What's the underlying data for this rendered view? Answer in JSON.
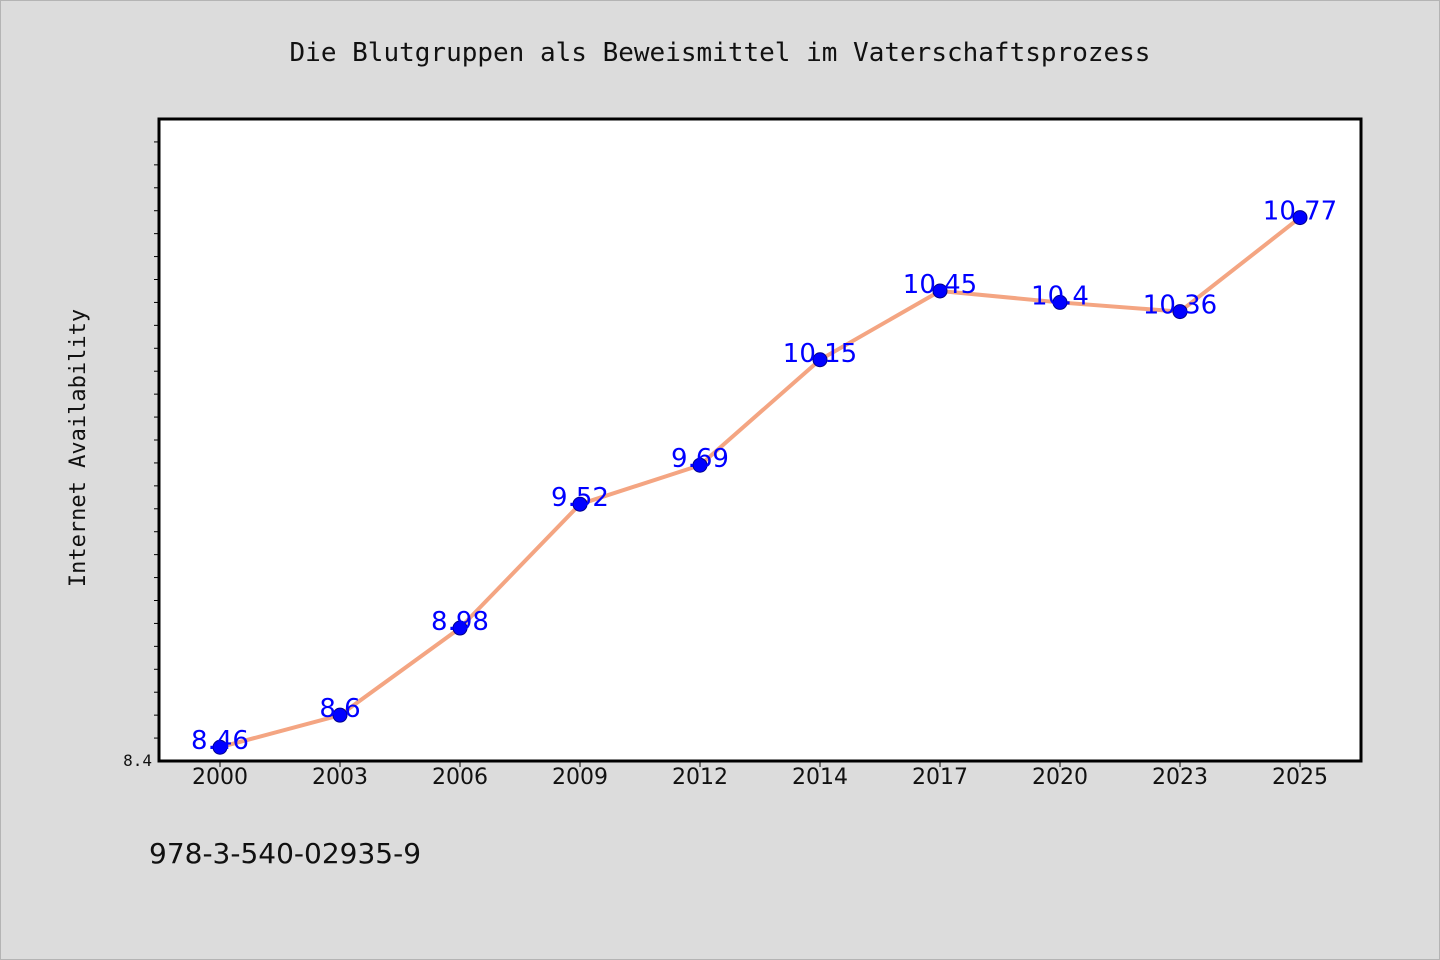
{
  "chart_data": {
    "type": "line",
    "title": "Die Blutgruppen als Beweismittel im Vaterschaftsprozess",
    "xlabel": "",
    "ylabel": "Internet Availability",
    "categories": [
      "2000",
      "2003",
      "2006",
      "2009",
      "2012",
      "2014",
      "2017",
      "2020",
      "2023",
      "2025"
    ],
    "series": [
      {
        "values": [
          8.46,
          8.6,
          8.98,
          9.52,
          9.69,
          10.15,
          10.45,
          10.4,
          10.36,
          10.77
        ],
        "labels": [
          "8.46",
          "8.6",
          "8.98",
          "9.52",
          "9.69",
          "10.15",
          "10.45",
          "10.4",
          "10.36",
          "10.77"
        ]
      }
    ],
    "ylim": [
      8.4,
      11.2
    ],
    "y_tick_label": "8.4",
    "grid": false,
    "colors": {
      "line": "#f4a582",
      "marker": "#0000ff",
      "data_label": "#0000ff",
      "plot_background": "#ffffff",
      "figure_background": "#dcdcdc"
    }
  },
  "footer": {
    "isbn": "978-3-540-02935-9"
  }
}
